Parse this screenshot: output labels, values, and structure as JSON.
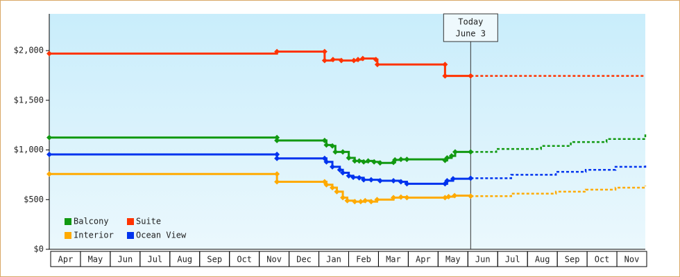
{
  "chart_data": {
    "type": "line",
    "step": true,
    "categories": [
      "Apr",
      "May",
      "Jun",
      "Jul",
      "Aug",
      "Sep",
      "Oct",
      "Nov",
      "Dec",
      "Jan",
      "Feb",
      "Mar",
      "Apr",
      "May",
      "Jun",
      "Jul",
      "Aug",
      "Sep",
      "Oct",
      "Nov"
    ],
    "xlim": [
      0,
      20
    ],
    "ylim": [
      0,
      2370
    ],
    "yticks": [
      {
        "value": 0,
        "label": "$0"
      },
      {
        "value": 500,
        "label": "$500"
      },
      {
        "value": 1000,
        "label": "$1,000"
      },
      {
        "value": 1500,
        "label": "$1,500"
      },
      {
        "value": 2000,
        "label": "$2,000"
      }
    ],
    "today": {
      "x": 14.14,
      "label": [
        "Today",
        "June 3"
      ]
    },
    "legend": "bottom-left",
    "series": [
      {
        "name": "Balcony",
        "color": "#119911",
        "x": [
          0,
          7.64,
          7.64,
          9.24,
          9.3,
          9.5,
          9.6,
          9.85,
          10.05,
          10.25,
          10.4,
          10.55,
          10.7,
          10.9,
          11.1,
          11.55,
          11.6,
          11.8,
          12,
          13.28,
          13.35,
          13.5,
          13.62,
          14.14
        ],
        "values": [
          1125,
          1125,
          1095,
          1095,
          1050,
          1040,
          980,
          980,
          920,
          890,
          890,
          880,
          890,
          880,
          870,
          875,
          900,
          905,
          905,
          895,
          920,
          940,
          980,
          980
        ],
        "forecast_x": [
          14.14,
          15,
          16.5,
          17.5,
          18.7,
          20
        ],
        "forecast_values": [
          980,
          1010,
          1040,
          1080,
          1110,
          1170
        ]
      },
      {
        "name": "Suite",
        "color": "#ff3300",
        "x": [
          0,
          7.64,
          9.24,
          9.24,
          9.52,
          9.8,
          10.22,
          10.36,
          10.52,
          10.96,
          11.01,
          13.28,
          13.28,
          14.14
        ],
        "values": [
          1970,
          1990,
          1990,
          1900,
          1910,
          1900,
          1900,
          1910,
          1920,
          1910,
          1860,
          1860,
          1745,
          1745
        ],
        "forecast_x": [
          14.14,
          20
        ],
        "forecast_values": [
          1745,
          1745
        ]
      },
      {
        "name": "Interior",
        "color": "#ffaa00",
        "x": [
          0,
          7.64,
          7.64,
          9.24,
          9.3,
          9.5,
          9.65,
          9.85,
          10,
          10.25,
          10.45,
          10.6,
          10.8,
          11,
          11.55,
          11.8,
          12,
          13.28,
          13.4,
          13.6,
          14.14
        ],
        "values": [
          758,
          758,
          680,
          680,
          650,
          620,
          580,
          520,
          490,
          480,
          480,
          490,
          480,
          500,
          520,
          525,
          520,
          520,
          530,
          540,
          535
        ],
        "forecast_x": [
          14.14,
          15.5,
          17,
          18,
          19,
          20
        ],
        "forecast_values": [
          535,
          560,
          580,
          600,
          620,
          640
        ]
      },
      {
        "name": "Ocean View",
        "color": "#0033ee",
        "x": [
          0,
          7.64,
          7.64,
          9.24,
          9.3,
          9.5,
          9.75,
          9.85,
          10.05,
          10.2,
          10.4,
          10.55,
          10.8,
          11.1,
          11.55,
          11.8,
          12,
          13.28,
          13.35,
          13.55,
          14.14
        ],
        "values": [
          955,
          955,
          915,
          915,
          880,
          830,
          800,
          770,
          740,
          725,
          720,
          700,
          700,
          690,
          690,
          680,
          660,
          660,
          690,
          710,
          715
        ],
        "forecast_x": [
          14.14,
          15.5,
          17,
          18,
          19,
          20
        ],
        "forecast_values": [
          715,
          750,
          780,
          800,
          830,
          850
        ]
      }
    ]
  }
}
